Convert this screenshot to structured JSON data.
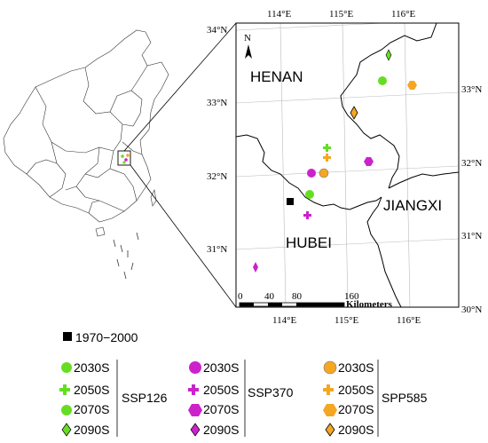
{
  "map": {
    "regions": {
      "henan": "HENAN",
      "hubei": "HUBEI",
      "jiangxi": "JIANGXI"
    },
    "north_label": "N",
    "lon_ticks": [
      "114°E",
      "115°E",
      "116°E"
    ],
    "lon_ticks_bottom": [
      "114°E",
      "115°E",
      "116°E"
    ],
    "lat_ticks_left": [
      "34°N",
      "33°N",
      "32°N",
      "31°N"
    ],
    "lat_ticks_right": [
      "33°N",
      "32°N",
      "31°N",
      "30°N"
    ],
    "scale_labels": [
      "0",
      "40",
      "80",
      "160"
    ],
    "scale_unit": "Kilometers"
  },
  "legend": {
    "baseline": "1970−2000",
    "ssp126": {
      "label": "SSP126",
      "items": [
        "2030S",
        "2050S",
        "2070S",
        "2090S"
      ]
    },
    "ssp370": {
      "label": "SSP370",
      "items": [
        "2030S",
        "2050S",
        "2070S",
        "2090S"
      ]
    },
    "spp585": {
      "label": "SPP585",
      "items": [
        "2030S",
        "2050S",
        "2070S",
        "2090S"
      ]
    }
  },
  "colors": {
    "ssp126": "#66dd22",
    "ssp370": "#cc22cc",
    "spp585": "#f5a623",
    "baseline": "#000000"
  }
}
